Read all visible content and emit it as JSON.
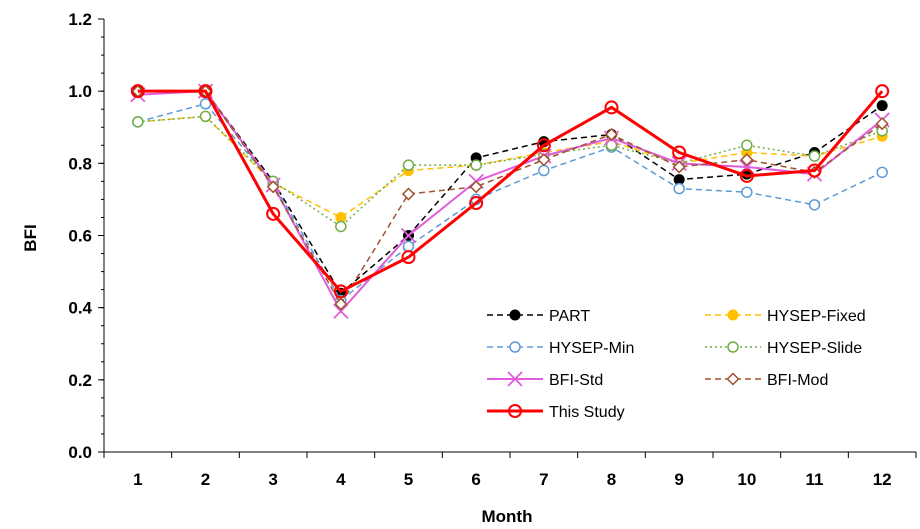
{
  "chart_data": {
    "type": "line",
    "xlabel": "Month",
    "ylabel": "BFI",
    "categories": [
      "1",
      "2",
      "3",
      "4",
      "5",
      "6",
      "7",
      "8",
      "9",
      "10",
      "11",
      "12"
    ],
    "ylim": [
      0,
      1.2
    ],
    "yticks": [
      "0.0",
      "0.2",
      "0.4",
      "0.6",
      "0.8",
      "1.0",
      "1.2"
    ],
    "grid": false,
    "legend_position": "bottom-right",
    "series": [
      {
        "name": "PART",
        "color": "#000000",
        "dash": "dashed",
        "marker": "filled-circle",
        "values": [
          1.0,
          1.0,
          0.75,
          0.44,
          0.6,
          0.815,
          0.86,
          0.88,
          0.755,
          0.77,
          0.83,
          0.96
        ]
      },
      {
        "name": "HYSEP-Fixed",
        "color": "#FFC000",
        "dash": "dashed",
        "marker": "filled-circle",
        "values": [
          0.915,
          0.93,
          0.745,
          0.65,
          0.78,
          0.795,
          0.83,
          0.86,
          0.8,
          0.83,
          0.82,
          0.875
        ]
      },
      {
        "name": "HYSEP-Min",
        "color": "#5B9BD5",
        "dash": "dashed",
        "marker": "open-circle",
        "values": [
          0.915,
          0.965,
          0.745,
          0.42,
          0.57,
          0.7,
          0.78,
          0.845,
          0.73,
          0.72,
          0.685,
          0.775
        ]
      },
      {
        "name": "HYSEP-Slide",
        "color": "#70AD47",
        "dash": "dotted",
        "marker": "open-circle",
        "values": [
          0.915,
          0.93,
          0.75,
          0.625,
          0.795,
          0.795,
          0.825,
          0.85,
          0.8,
          0.85,
          0.82,
          0.89
        ]
      },
      {
        "name": "BFI-Std",
        "color": "#E05CDC",
        "dash": "solid",
        "marker": "x",
        "values": [
          0.99,
          1.0,
          0.74,
          0.39,
          0.6,
          0.75,
          0.82,
          0.87,
          0.8,
          0.79,
          0.77,
          0.92
        ]
      },
      {
        "name": "BFI-Mod",
        "color": "#A0522D",
        "dash": "dashed",
        "marker": "open-diamond",
        "values": [
          1.0,
          1.0,
          0.735,
          0.41,
          0.715,
          0.735,
          0.81,
          0.88,
          0.79,
          0.81,
          0.775,
          0.91
        ]
      },
      {
        "name": "This Study",
        "color": "#FF0000",
        "dash": "solid",
        "marker": "open-circle-thick",
        "values": [
          1.0,
          1.0,
          0.66,
          0.445,
          0.54,
          0.69,
          0.85,
          0.955,
          0.83,
          0.765,
          0.78,
          1.0
        ]
      }
    ]
  }
}
